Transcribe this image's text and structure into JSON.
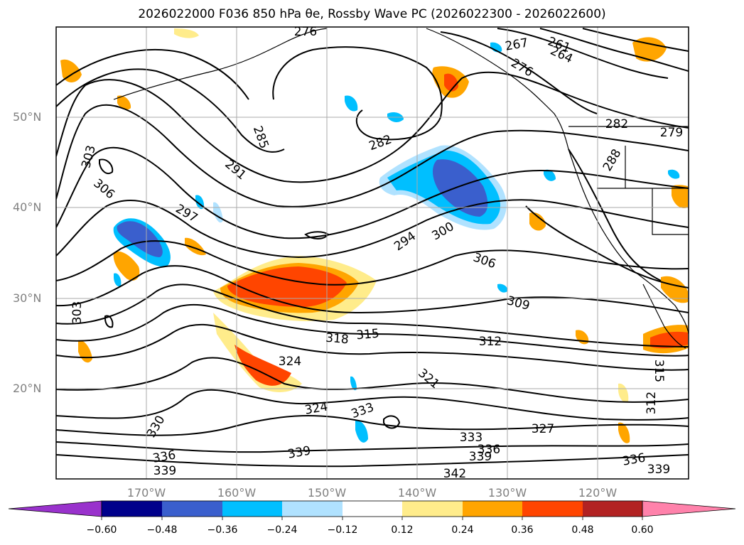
{
  "title": "2026022000 F036 850 hPa θe, Rossby Wave PC (2026022300 - 2026022600)",
  "map": {
    "lat_labels": [
      "50°N",
      "40°N",
      "30°N",
      "20°N"
    ],
    "lon_labels": [
      "170°W",
      "160°W",
      "150°W",
      "140°W",
      "130°W",
      "120°W"
    ],
    "grid": true,
    "contour_labels": [
      "276",
      "267",
      "261",
      "264",
      "276",
      "282",
      "279",
      "285",
      "282",
      "288",
      "291",
      "303",
      "306",
      "297",
      "294",
      "300",
      "306",
      "309",
      "303",
      "318",
      "315",
      "312",
      "324",
      "321",
      "315",
      "312",
      "324",
      "333",
      "330",
      "327",
      "333",
      "336",
      "339",
      "336",
      "339",
      "342",
      "336",
      "339",
      "339"
    ]
  },
  "colorbar": {
    "tick_labels": [
      "−0.60",
      "−0.48",
      "−0.36",
      "−0.24",
      "−0.12",
      "0.12",
      "0.24",
      "0.36",
      "0.48",
      "0.60"
    ],
    "colors": [
      "#9932cc",
      "#00008b",
      "#3a5fcd",
      "#00bfff",
      "#b0e2ff",
      "#ffffff",
      "#ffec8b",
      "#ffa500",
      "#ff4500",
      "#b22222",
      "#ff82ab"
    ],
    "extend": "both"
  }
}
